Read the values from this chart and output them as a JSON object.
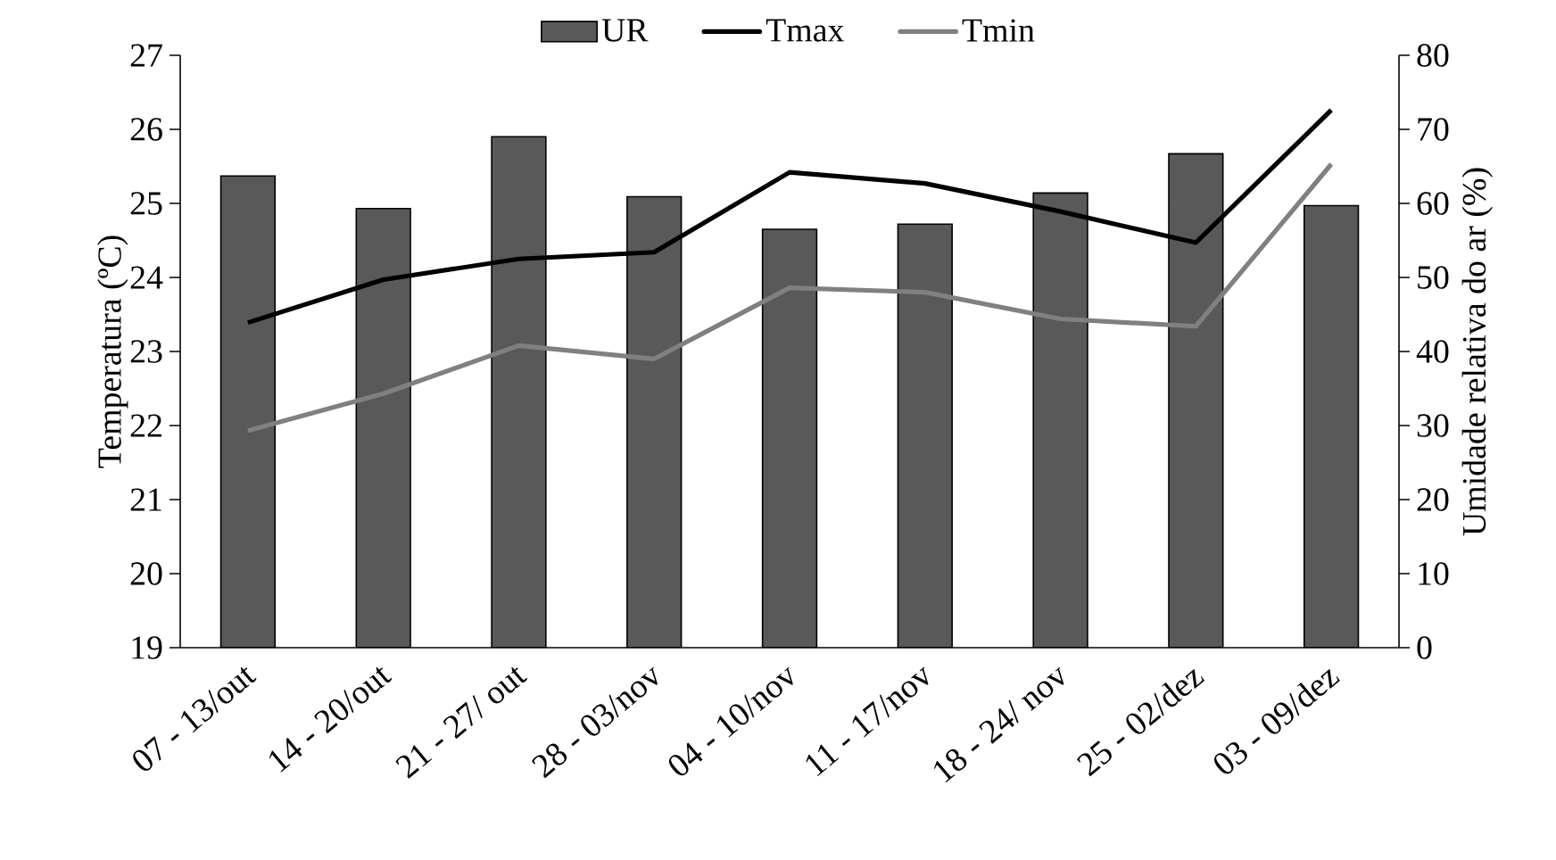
{
  "chart_data": {
    "type": "bar",
    "ylabel": "Temperatura (ºC)",
    "y2label": "Umidade relativa do ar (%)",
    "categories": [
      "07 - 13/out",
      "14 - 20/out",
      "21 - 27/ out",
      "28 - 03/nov",
      "04 - 10/nov",
      "11 - 17/nov",
      "18 - 24/ nov",
      "25 - 02/dez",
      "03 - 09/dez"
    ],
    "series": [
      {
        "name": "UR",
        "axis": "y2",
        "color": "#595959",
        "values": [
          63.7,
          59.3,
          69.0,
          60.9,
          56.5,
          57.2,
          61.4,
          66.7,
          59.7
        ]
      },
      {
        "name": "Tmax",
        "type": "line",
        "color": "#000000",
        "values": [
          23.39,
          23.97,
          24.25,
          24.34,
          25.42,
          25.27,
          24.89,
          24.47,
          26.26
        ]
      },
      {
        "name": "Tmin",
        "type": "line",
        "color": "#808080",
        "values": [
          21.93,
          22.43,
          23.08,
          22.9,
          23.86,
          23.8,
          23.44,
          23.34,
          25.53
        ]
      }
    ],
    "ylim": [
      19,
      27
    ],
    "yticks": [
      19,
      20,
      21,
      22,
      23,
      24,
      25,
      26,
      27
    ],
    "y2lim": [
      0,
      80
    ],
    "y2ticks": [
      0,
      10,
      20,
      30,
      40,
      50,
      60,
      70,
      80
    ],
    "legend": "top",
    "marker": "none",
    "line_style": "solid",
    "grid": false
  }
}
